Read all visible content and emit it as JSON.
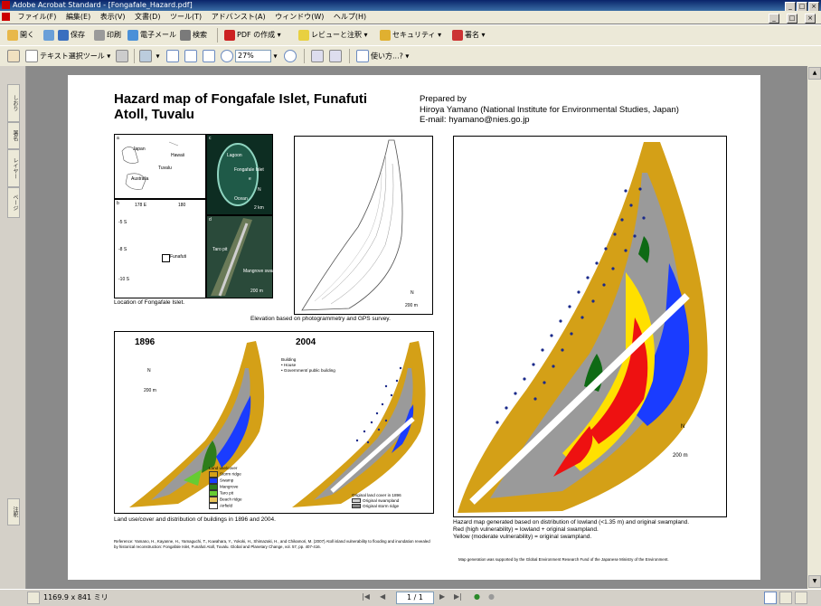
{
  "window": {
    "title": "Adobe Acrobat Standard - [Fongafale_Hazard.pdf]",
    "buttons": [
      "_",
      "□",
      "×"
    ],
    "doc_buttons": [
      "_",
      "□",
      "×"
    ]
  },
  "menu": [
    "ファイル(F)",
    "編集(E)",
    "表示(V)",
    "文書(D)",
    "ツール(T)",
    "アドバンスト(A)",
    "ウィンドウ(W)",
    "ヘルプ(H)"
  ],
  "toolbar1": {
    "open": "開く",
    "save": "保存",
    "print": "印刷",
    "email": "電子メール",
    "search": "検索",
    "create_pdf": "PDF の作成",
    "review": "レビューと注釈",
    "security": "セキュリティ",
    "sign": "署名"
  },
  "toolbar2": {
    "select_text": "テキスト選択ツール",
    "zoom": "27%",
    "how_to": "使い方...?"
  },
  "sidebar_tabs": [
    "しおり",
    "署名",
    "レイヤー",
    "ページ",
    "注釈"
  ],
  "status": {
    "page_size": "1169.9 x 841 ミリ",
    "page_display": "1 / 1"
  },
  "poster": {
    "title": "Hazard map of Fongafale Islet, Funafuti Atoll, Tuvalu",
    "prepared_by": "Prepared by",
    "author": "Hiroya Yamano (National Institute for Environmental Studies, Japan)",
    "email": "E-mail: hyamano@nies.go.jp",
    "location_caption": "Location of Fongafale Islet.",
    "elevation_caption": "Elevation based on photogrammetry and GPS survey.",
    "landuse_caption": "Land use/cover and distribution of buildings in 1896 and 2004.",
    "hazard_caption_1": "Hazard map generated based on distribution of lowland (<1.35 m) and original swampland.",
    "hazard_caption_2": "Red (high vulnerability) = lowland + original swampland.",
    "hazard_caption_3": "Yellow (moderate vulnerability) = original swampland.",
    "reference": "Reference: Yamano, H., Kayanne, H., Yamaguchi, T., Kuwahara, Y., Yokoki, H., Shimazaki, H., and Chikamori, M. (2007) Atoll island vulnerability to flooding and inundation revealed by historical reconstruction: Fongafale Islet, Funafuti Atoll, Tuvalu. Global and Planetary Change, vol. 57, pp. 407-416.",
    "funding": "Map generation was supported by the Global Environment Research Fund of the Japanese Ministry of the Environment.",
    "year_1896": "1896",
    "year_2004": "2004",
    "map_labels": {
      "japan": "Japan",
      "hawaii": "Hawaii",
      "tuvalu": "Tuvalu",
      "australia": "Australia",
      "lagoon": "Lagoon",
      "fongafale": "Fongafale Islet",
      "ocean": "Ocean",
      "scale_2km": "2 km",
      "funafuti": "Funafuti",
      "taro_pit": "Taro pit",
      "mangrove_swamp": "Mangrove swamp",
      "scale_200m": "200 m",
      "north": "N",
      "panel_a": "a",
      "panel_b": "b",
      "panel_c": "c",
      "panel_d": "d",
      "panel_e": "e",
      "lon1": "178 E",
      "lon2": "180",
      "lat1": "-5 S",
      "lat2": "-8 S",
      "lat3": "-10 S"
    },
    "building_legend": {
      "title": "Building",
      "house": "House",
      "government": "Government/ public building"
    },
    "landuse_legend": {
      "title": "Land use/cover",
      "items": [
        {
          "label": "Storm ridge",
          "color": "#d4a017"
        },
        {
          "label": "Swamp",
          "color": "#1a3cff"
        },
        {
          "label": "Mangrove",
          "color": "#2e7d1a"
        },
        {
          "label": "Taro pit",
          "color": "#66cc33"
        },
        {
          "label": "Beach ridge",
          "color": "#e8c35a"
        },
        {
          "label": "Airfield",
          "color": "#ffffff"
        }
      ]
    },
    "original_legend": {
      "title": "Original land cover in 1896",
      "items": [
        {
          "label": "Original swampland",
          "color": "#d0d0d0"
        },
        {
          "label": "Original storm ridge",
          "color": "#888888"
        }
      ]
    }
  }
}
